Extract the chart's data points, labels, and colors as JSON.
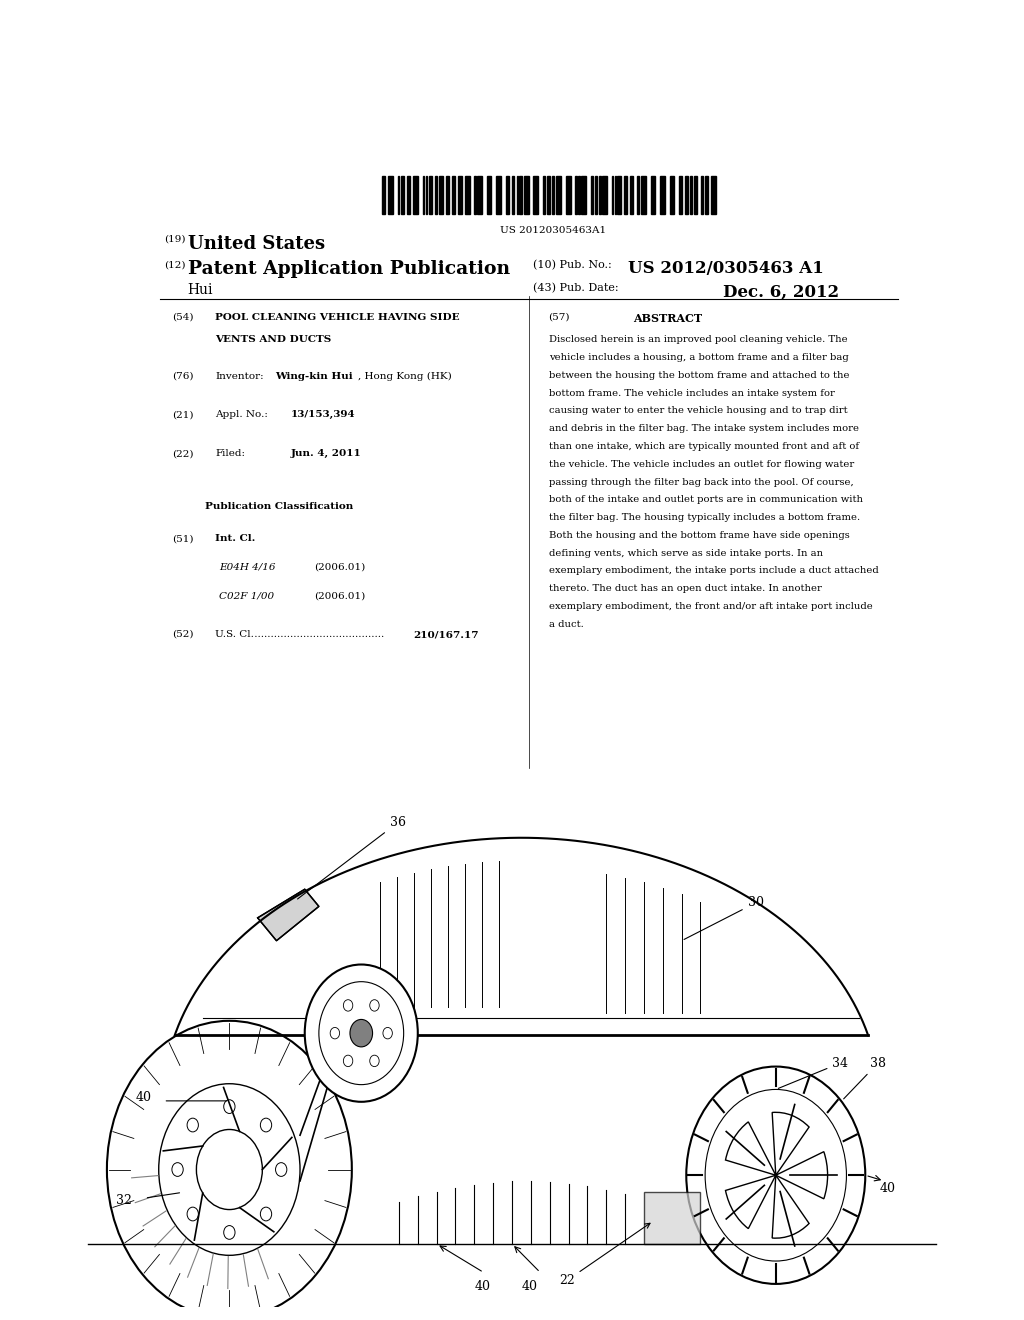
{
  "background_color": "#ffffff",
  "barcode_text": "US 20120305463A1",
  "header": {
    "country_num": "(19)",
    "country": "United States",
    "type_num": "(12)",
    "type": "Patent Application Publication",
    "pub_num_label": "(10) Pub. No.:",
    "pub_num": "US 2012/0305463 A1",
    "inventor_label": "Hui",
    "date_num_label": "(43) Pub. Date:",
    "date": "Dec. 6, 2012"
  },
  "left_col": [
    {
      "num": "(54)",
      "label": "POOL CLEANING VEHICLE HAVING SIDE\nVENTS AND DUCTS"
    },
    {
      "num": "(76)",
      "label": "Inventor:",
      "value": "Wing-kin Hui, Hong Kong (HK)"
    },
    {
      "num": "(21)",
      "label": "Appl. No.:",
      "value": "13/153,394"
    },
    {
      "num": "(22)",
      "label": "Filed:",
      "value": "Jun. 4, 2011"
    },
    {
      "num": "",
      "label": "Publication Classification"
    },
    {
      "num": "(51)",
      "label": "Int. Cl.",
      "sub": [
        [
          "E04H 4/16",
          "(2006.01)"
        ],
        [
          "C02F 1/00",
          "(2006.01)"
        ]
      ]
    },
    {
      "num": "(52)",
      "label": "U.S. Cl.",
      "value": "210/167.17",
      "dots": true
    }
  ],
  "right_col": {
    "num": "(57)",
    "label": "ABSTRACT",
    "text": "Disclosed herein is an improved pool cleaning vehicle. The vehicle includes a housing, a bottom frame and a filter bag between the housing the bottom frame and attached to the bottom frame. The vehicle includes an intake system for causing water to enter the vehicle housing and to trap dirt and debris in the filter bag. The intake system includes more than one intake, which are typically mounted front and aft of the vehicle. The vehicle includes an outlet for flowing water passing through the filter bag back into the pool. Of course, both of the intake and outlet ports are in communication with the filter bag. The housing typically includes a bottom frame. Both the housing and the bottom frame have side openings defining vents, which serve as side intake ports. In an exemplary embodiment, the intake ports include a duct attached thereto. The duct has an open duct intake. In another exemplary embodiment, the front and/or aft intake port include a duct."
  }
}
